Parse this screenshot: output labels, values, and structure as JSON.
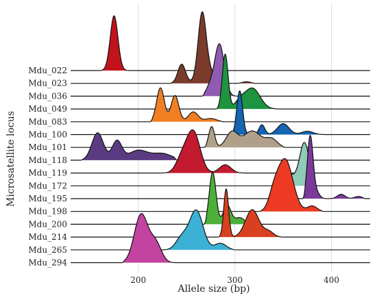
{
  "chart_data": {
    "type": "ridgeline",
    "xlabel": "Allele size (bp)",
    "ylabel": "Microsatellite locus",
    "xlim": [
      130,
      440
    ],
    "xticks": [
      200,
      300,
      400
    ],
    "grid": "vertical",
    "series": [
      {
        "name": "Mdu_022",
        "color": "#c2131c",
        "peaks": [
          [
            175,
            1.0,
            4
          ]
        ],
        "range": [
          160,
          192
        ]
      },
      {
        "name": "Mdu_023",
        "color": "#7a3b2b",
        "peaks": [
          [
            245,
            0.35,
            4
          ],
          [
            266,
            1.05,
            4
          ],
          [
            270,
            0.3,
            7
          ],
          [
            312,
            0.03,
            4
          ]
        ],
        "range": [
          232,
          322
        ]
      },
      {
        "name": "Mdu_036",
        "color": "#8f5bb3",
        "peaks": [
          [
            284,
            0.95,
            5
          ],
          [
            274,
            0.15,
            4
          ]
        ],
        "range": [
          266,
          306
        ]
      },
      {
        "name": "Mdu_049",
        "color": "#1e9440",
        "peaks": [
          [
            290,
            1.0,
            3
          ],
          [
            318,
            0.38,
            8
          ],
          [
            305,
            0.12,
            5
          ]
        ],
        "range": [
          280,
          345
        ]
      },
      {
        "name": "Mdu_083",
        "color": "#f07f24",
        "peaks": [
          [
            223,
            0.62,
            4
          ],
          [
            238,
            0.48,
            4
          ],
          [
            257,
            0.18,
            5
          ],
          [
            275,
            0.06,
            6
          ]
        ],
        "range": [
          212,
          288
        ]
      },
      {
        "name": "Mdu_100",
        "color": "#1565b0",
        "peaks": [
          [
            305,
            0.8,
            3
          ],
          [
            328,
            0.18,
            3
          ],
          [
            350,
            0.2,
            6
          ],
          [
            375,
            0.06,
            6
          ]
        ],
        "range": [
          295,
          395
        ]
      },
      {
        "name": "Mdu_101",
        "color": "#b0a08a",
        "peaks": [
          [
            276,
            0.38,
            3
          ],
          [
            297,
            0.28,
            6
          ],
          [
            318,
            0.3,
            9
          ],
          [
            338,
            0.15,
            6
          ]
        ],
        "range": [
          268,
          352
        ]
      },
      {
        "name": "Mdu_118",
        "color": "#5a3a80",
        "peaks": [
          [
            158,
            0.5,
            6
          ],
          [
            178,
            0.35,
            5
          ],
          [
            200,
            0.18,
            10
          ],
          [
            225,
            0.12,
            10
          ]
        ],
        "range": [
          140,
          240
        ]
      },
      {
        "name": "Mdu_119",
        "color": "#c41a30",
        "peaks": [
          [
            257,
            0.75,
            7
          ],
          [
            245,
            0.25,
            6
          ],
          [
            290,
            0.15,
            6
          ]
        ],
        "range": [
          215,
          310
        ]
      },
      {
        "name": "Mdu_172",
        "color": "#8fcbb8",
        "peaks": [
          [
            372,
            0.78,
            5
          ],
          [
            355,
            0.22,
            7
          ]
        ],
        "range": [
          338,
          385
        ]
      },
      {
        "name": "Mdu_195",
        "color": "#7b3a9a",
        "peaks": [
          [
            378,
            1.15,
            3
          ],
          [
            385,
            0.1,
            3
          ],
          [
            410,
            0.08,
            4
          ],
          [
            428,
            0.04,
            4
          ]
        ],
        "range": [
          370,
          435
        ]
      },
      {
        "name": "Mdu_198",
        "color": "#ec3a25",
        "peaks": [
          [
            352,
            0.95,
            8
          ],
          [
            340,
            0.25,
            5
          ],
          [
            380,
            0.1,
            5
          ]
        ],
        "range": [
          325,
          392
        ]
      },
      {
        "name": "Mdu_200",
        "color": "#4caf3a",
        "peaks": [
          [
            277,
            0.95,
            3.5
          ],
          [
            292,
            0.35,
            4
          ],
          [
            305,
            0.12,
            5
          ]
        ],
        "range": [
          268,
          320
        ]
      },
      {
        "name": "Mdu_214",
        "color": "#d8401f",
        "peaks": [
          [
            291,
            0.88,
            2.5
          ],
          [
            318,
            0.5,
            7
          ],
          [
            335,
            0.1,
            5
          ]
        ],
        "range": [
          282,
          350
        ]
      },
      {
        "name": "Mdu_265",
        "color": "#3bb1d5",
        "peaks": [
          [
            260,
            0.72,
            7
          ],
          [
            245,
            0.22,
            6
          ],
          [
            285,
            0.12,
            6
          ]
        ],
        "range": [
          225,
          300
        ]
      },
      {
        "name": "Mdu_294",
        "color": "#c343a0",
        "peaks": [
          [
            203,
            0.88,
            7
          ],
          [
            218,
            0.35,
            6
          ]
        ],
        "range": [
          183,
          238
        ]
      }
    ]
  }
}
